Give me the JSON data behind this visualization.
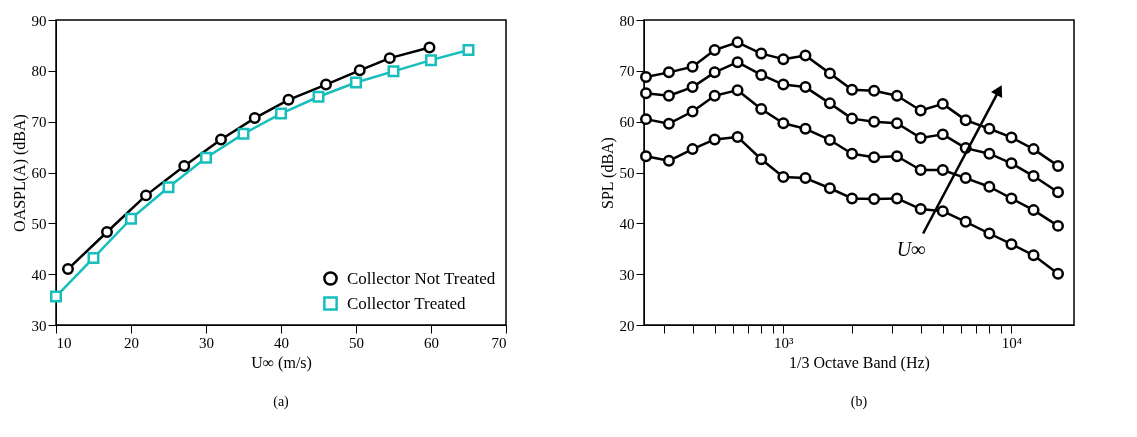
{
  "chart_data": [
    {
      "type": "line",
      "title": "(a)",
      "xlabel": "U∞ (m/s)",
      "ylabel": "OASPL(A) (dBA)",
      "xlim": [
        10,
        70
      ],
      "ylim": [
        30,
        90
      ],
      "xticks": [
        10,
        20,
        30,
        40,
        50,
        60,
        70
      ],
      "yticks": [
        30,
        40,
        50,
        60,
        70,
        80,
        90
      ],
      "grid": false,
      "legend": "bottom right",
      "line_style": "solid",
      "series": [
        {
          "name": "Collector Not Treated",
          "color": "#000000",
          "marker": "circle",
          "x": [
            11.6,
            16.8,
            22,
            27.1,
            32,
            36.5,
            41,
            46,
            50.5,
            54.5,
            59.8
          ],
          "values": [
            41.0,
            48.3,
            55.5,
            61.3,
            66.5,
            70.7,
            74.3,
            77.3,
            80.1,
            82.5,
            84.6
          ]
        },
        {
          "name": "Collector Treated",
          "color": "#17bebb",
          "marker": "square",
          "x": [
            10,
            15,
            20,
            25,
            30,
            35,
            40,
            45,
            50,
            55,
            60,
            65
          ],
          "values": [
            35.6,
            43.2,
            50.9,
            57.1,
            62.9,
            67.6,
            71.6,
            74.9,
            77.7,
            79.9,
            82.1,
            84.1
          ]
        }
      ]
    },
    {
      "type": "line",
      "title": "(b)",
      "xlabel": "1/3 Octave Band (Hz)",
      "ylabel": "SPL (dBA)",
      "log": "x",
      "xlim": [
        245,
        18800
      ],
      "ylim": [
        20,
        80
      ],
      "xticks": [
        {
          "value": 300,
          "label": null
        },
        {
          "value": 400,
          "label": null
        },
        {
          "value": 500,
          "label": null
        },
        {
          "value": 600,
          "label": null
        },
        {
          "value": 700,
          "label": null
        },
        {
          "value": 800,
          "label": null
        },
        {
          "value": 900,
          "label": null
        },
        {
          "value": 1000,
          "label": "10³"
        },
        {
          "value": 2000,
          "label": null
        },
        {
          "value": 3000,
          "label": null
        },
        {
          "value": 4000,
          "label": null
        },
        {
          "value": 5000,
          "label": null
        },
        {
          "value": 6000,
          "label": null
        },
        {
          "value": 7000,
          "label": null
        },
        {
          "value": 8000,
          "label": null
        },
        {
          "value": 9000,
          "label": null
        },
        {
          "value": 10000,
          "label": "10⁴"
        }
      ],
      "yticks": [
        20,
        30,
        40,
        50,
        60,
        70,
        80
      ],
      "grid": false,
      "legend": false,
      "line_style": "solid",
      "x": [
        250,
        315,
        400,
        500,
        630,
        800,
        1000,
        1250,
        1600,
        2000,
        2500,
        3150,
        4000,
        5000,
        6300,
        8000,
        10000,
        12500,
        16000
      ],
      "series": [
        {
          "color": "#000000",
          "marker": "circle",
          "values": [
            68.8,
            69.7,
            70.8,
            74.1,
            75.6,
            73.4,
            72.3,
            73.0,
            69.5,
            66.3,
            66.1,
            65.1,
            62.2,
            63.5,
            60.3,
            58.6,
            56.9,
            54.6,
            51.3
          ]
        },
        {
          "color": "#000000",
          "marker": "circle",
          "values": [
            65.6,
            65.1,
            66.8,
            69.7,
            71.7,
            69.2,
            67.3,
            66.8,
            63.6,
            60.6,
            60.0,
            59.7,
            56.8,
            57.5,
            54.8,
            53.7,
            51.8,
            49.3,
            46.1
          ]
        },
        {
          "color": "#000000",
          "marker": "circle",
          "values": [
            60.5,
            59.6,
            62.0,
            65.1,
            66.2,
            62.5,
            59.7,
            58.6,
            56.4,
            53.7,
            53.0,
            53.2,
            50.5,
            50.5,
            48.9,
            47.2,
            44.9,
            42.6,
            39.5
          ]
        },
        {
          "color": "#000000",
          "marker": "circle",
          "values": [
            53.2,
            52.3,
            54.6,
            56.5,
            57.0,
            52.6,
            49.1,
            48.9,
            46.9,
            44.9,
            44.8,
            44.9,
            42.8,
            42.4,
            40.3,
            38.0,
            35.9,
            33.7,
            30.1
          ]
        },
        {
          "type": "line",
          "color": "#000000",
          "x": [
            4100,
            8830
          ],
          "values": [
            38.0,
            66.2
          ]
        }
      ],
      "annotations": [
        "U∞"
      ]
    }
  ]
}
